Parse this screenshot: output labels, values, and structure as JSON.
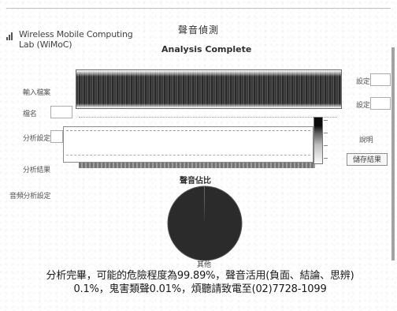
{
  "header": {
    "org_name": "Wireless Mobile Computing\nLab (WiMoC)",
    "app_title": "聲音偵測",
    "status": "Analysis Complete"
  },
  "left_labels": {
    "row1": "輸入檔案",
    "row2": "檔名",
    "row3": "分析設定",
    "row4": "分析結果",
    "row5": "音頻分析設定"
  },
  "right_labels": {
    "row1": "設定",
    "row2": "設定",
    "row3": "說明",
    "row4_button": "儲存結果"
  },
  "chart": {
    "title": "聲音佔比",
    "slice_label": "其他"
  },
  "chart_data": {
    "type": "pie",
    "title": "聲音佔比",
    "categories": [
      "其他",
      "聲音活用",
      "鬼害類聲"
    ],
    "values": [
      99.89,
      0.1,
      0.01
    ],
    "colors": [
      "#2f2f2f",
      "#9a9a9a",
      "#d6d6d6"
    ],
    "legend": "none"
  },
  "summary": {
    "line1": "分析完畢，可能的危險程度為99.89%，聲音活用(負面、結論、思辨)",
    "line2": "0.1%，鬼害類聲0.01%，煩聽請致電至(02)7728-1099"
  }
}
